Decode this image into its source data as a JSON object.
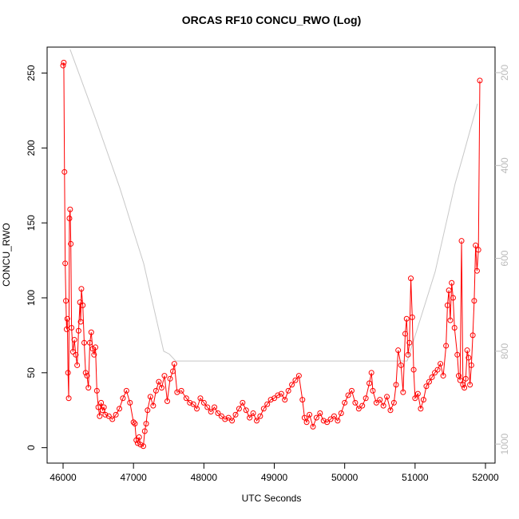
{
  "chart_data": {
    "type": "line",
    "title": "ORCAS RF10 CONCU_RWO (Log)",
    "x_label": "UTC Seconds",
    "y_label": "CONCU_RWO",
    "xlim": [
      45773,
      52136
    ],
    "xticks": [
      46000,
      47000,
      48000,
      49000,
      50000,
      51000,
      52000
    ],
    "ylim": [
      -10.3,
      267.3
    ],
    "yticks": [
      0,
      50,
      100,
      150,
      200,
      250
    ],
    "y2lim": [
      1041,
      145
    ],
    "y2ticks": [
      200,
      400,
      600,
      800,
      1000
    ],
    "series": [
      {
        "color": "#ff0000",
        "markers": true,
        "x": [
          46000,
          46010,
          46020,
          46030,
          46040,
          46050,
          46060,
          46070,
          46080,
          46090,
          46100,
          46110,
          46120,
          46140,
          46160,
          46180,
          46200,
          46220,
          46240,
          46250,
          46260,
          46280,
          46300,
          46320,
          46340,
          46360,
          46380,
          46400,
          46420,
          46440,
          46460,
          46480,
          46500,
          46520,
          46540,
          46560,
          46580,
          46600,
          46650,
          46700,
          46750,
          46800,
          46850,
          46900,
          46950,
          47000,
          47020,
          47040,
          47060,
          47080,
          47100,
          47140,
          47160,
          47180,
          47200,
          47240,
          47280,
          47320,
          47360,
          47400,
          47440,
          47480,
          47520,
          47560,
          47580,
          47620,
          47680,
          47750,
          47800,
          47850,
          47900,
          47950,
          48000,
          48050,
          48100,
          48150,
          48200,
          48250,
          48300,
          48350,
          48400,
          48450,
          48500,
          48550,
          48600,
          48650,
          48700,
          48750,
          48800,
          48850,
          48900,
          48950,
          49000,
          49050,
          49100,
          49150,
          49200,
          49250,
          49300,
          49350,
          49400,
          49430,
          49460,
          49500,
          49550,
          49600,
          49650,
          49700,
          49750,
          49800,
          49850,
          49900,
          49950,
          50000,
          50050,
          50100,
          50150,
          50200,
          50250,
          50300,
          50350,
          50380,
          50400,
          50450,
          50500,
          50550,
          50600,
          50650,
          50700,
          50730,
          50760,
          50800,
          50830,
          50860,
          50880,
          50900,
          50920,
          50940,
          50960,
          50980,
          51000,
          51040,
          51080,
          51120,
          51160,
          51200,
          51240,
          51280,
          51320,
          51360,
          51400,
          51440,
          51460,
          51480,
          51500,
          51520,
          51540,
          51560,
          51600,
          51620,
          51640,
          51660,
          51680,
          51700,
          51720,
          51740,
          51760,
          51780,
          51800,
          51820,
          51840,
          51860,
          51880,
          51900,
          51920
        ],
        "values": [
          255,
          257,
          184,
          123,
          98,
          79,
          86,
          50,
          33,
          153,
          159,
          136,
          80,
          64,
          72,
          62,
          55,
          78,
          97,
          84,
          106,
          95,
          70,
          50,
          48,
          40,
          70,
          77,
          66,
          62,
          67,
          38,
          27,
          21,
          30,
          25,
          27,
          22,
          21,
          19,
          22,
          26,
          33,
          38,
          30,
          17,
          16,
          5,
          3,
          7,
          2,
          1,
          11,
          16,
          25,
          34,
          28,
          38,
          44,
          40,
          48,
          31,
          46,
          51,
          56,
          37,
          38,
          33,
          30,
          29,
          26,
          33,
          30,
          27,
          24,
          27,
          23,
          21,
          19,
          20,
          18,
          22,
          26,
          30,
          25,
          20,
          23,
          18,
          21,
          26,
          29,
          32,
          33,
          35,
          36,
          32,
          38,
          42,
          45,
          48,
          32,
          20,
          17,
          22,
          14,
          20,
          23,
          18,
          17,
          19,
          21,
          18,
          23,
          30,
          35,
          38,
          30,
          26,
          28,
          33,
          43,
          50,
          38,
          30,
          32,
          28,
          34,
          25,
          30,
          42,
          65,
          55,
          37,
          76,
          86,
          62,
          70,
          113,
          87,
          52,
          33,
          36,
          26,
          32,
          41,
          44,
          47,
          50,
          52,
          56,
          48,
          68,
          95,
          105,
          85,
          110,
          100,
          80,
          62,
          48,
          45,
          138,
          42,
          40,
          46,
          65,
          60,
          42,
          55,
          75,
          98,
          135,
          118,
          132,
          245
        ]
      },
      {
        "color": "#c8c8c8",
        "axis": "y2",
        "markers": false,
        "x": [
          46100,
          46465,
          46805,
          47145,
          47429,
          47508,
          47600,
          50888,
          51002,
          51285,
          51569,
          51682,
          51886
        ],
        "values": [
          150,
          301,
          448,
          611,
          800,
          806,
          821,
          821,
          766,
          629,
          439,
          379,
          267
        ]
      }
    ]
  }
}
